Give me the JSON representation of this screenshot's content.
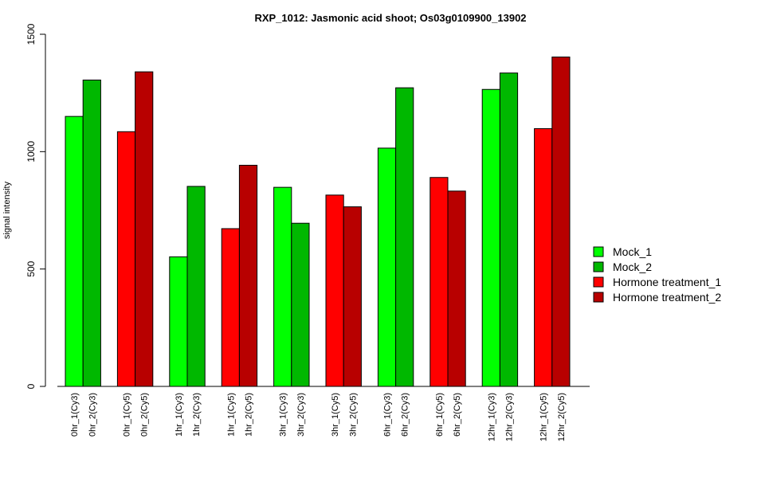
{
  "chart_data": {
    "type": "bar",
    "title": "RXP_1012: Jasmonic acid shoot; Os03g0109900_13902",
    "xlabel": "",
    "ylabel": "signal intensity",
    "ylim": [
      0,
      1500
    ],
    "yticks": [
      0,
      500,
      1000,
      1500
    ],
    "grid": false,
    "legend_position": "right",
    "groups": [
      {
        "categories": [
          "0hr_1(Cy3)",
          "0hr_2(Cy3)"
        ],
        "values": [
          1150,
          1305
        ],
        "series": [
          "Mock_1",
          "Mock_2"
        ]
      },
      {
        "categories": [
          "0hr_1(Cy5)",
          "0hr_2(Cy5)"
        ],
        "values": [
          1085,
          1340
        ],
        "series": [
          "Hormone treatment_1",
          "Hormone treatment_2"
        ]
      },
      {
        "categories": [
          "1hr_1(Cy3)",
          "1hr_2(Cy3)"
        ],
        "values": [
          552,
          852
        ],
        "series": [
          "Mock_1",
          "Mock_2"
        ]
      },
      {
        "categories": [
          "1hr_1(Cy5)",
          "1hr_2(Cy5)"
        ],
        "values": [
          672,
          942
        ],
        "series": [
          "Hormone treatment_1",
          "Hormone treatment_2"
        ]
      },
      {
        "categories": [
          "3hr_1(Cy3)",
          "3hr_2(Cy3)"
        ],
        "values": [
          848,
          695
        ],
        "series": [
          "Mock_1",
          "Mock_2"
        ]
      },
      {
        "categories": [
          "3hr_1(Cy5)",
          "3hr_2(Cy5)"
        ],
        "values": [
          815,
          765
        ],
        "series": [
          "Hormone treatment_1",
          "Hormone treatment_2"
        ]
      },
      {
        "categories": [
          "6hr_1(Cy3)",
          "6hr_2(Cy3)"
        ],
        "values": [
          1015,
          1272
        ],
        "series": [
          "Mock_1",
          "Mock_2"
        ]
      },
      {
        "categories": [
          "6hr_1(Cy5)",
          "6hr_2(Cy5)"
        ],
        "values": [
          890,
          832
        ],
        "series": [
          "Hormone treatment_1",
          "Hormone treatment_2"
        ]
      },
      {
        "categories": [
          "12hr_1(Cy3)",
          "12hr_2(Cy3)"
        ],
        "values": [
          1265,
          1335
        ],
        "series": [
          "Mock_1",
          "Mock_2"
        ]
      },
      {
        "categories": [
          "12hr_1(Cy5)",
          "12hr_2(Cy5)"
        ],
        "values": [
          1098,
          1403
        ],
        "series": [
          "Hormone treatment_1",
          "Hormone treatment_2"
        ]
      }
    ],
    "legend": [
      {
        "name": "Mock_1",
        "color": "#00ff00"
      },
      {
        "name": "Mock_2",
        "color": "#00b800"
      },
      {
        "name": "Hormone treatment_1",
        "color": "#ff0000"
      },
      {
        "name": "Hormone treatment_2",
        "color": "#b80000"
      }
    ]
  }
}
